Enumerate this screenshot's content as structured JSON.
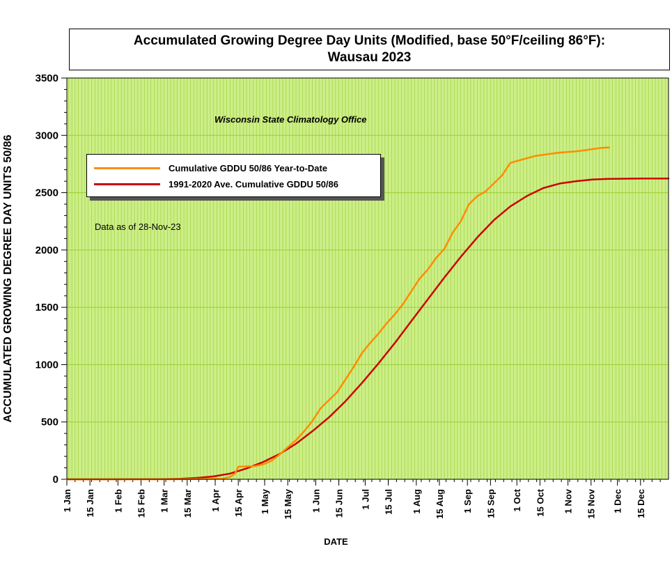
{
  "title_line1": "Accumulated Growing Degree Day Units (Modified, base 50°F/ceiling 86°F):",
  "title_line2": "Wausau 2023",
  "source_note": "Wisconsin State Climatology Office",
  "data_note": "Data as of 28-Nov-23",
  "colors": {
    "plot_bg": "#ccee88",
    "grid": "#9acd32",
    "ytd": "#ff8c00",
    "avg": "#cc0000"
  },
  "chart_data": {
    "type": "line",
    "title": "Accumulated Growing Degree Day Units (Modified, base 50°F/ceiling 86°F): Wausau 2023",
    "xlabel": "DATE",
    "ylabel": "ACCUMULATED GROWING DEGREE DAY UNITS 50/86",
    "ylim": [
      0,
      3500
    ],
    "xlim_day_of_year": [
      1,
      366
    ],
    "yticks": [
      "0",
      "500",
      "1000",
      "1500",
      "2000",
      "2500",
      "3000",
      "3500"
    ],
    "xticks": [
      {
        "label": "1 Jan",
        "day": 1
      },
      {
        "label": "15 Jan",
        "day": 15
      },
      {
        "label": "1 Feb",
        "day": 32
      },
      {
        "label": "15 Feb",
        "day": 46
      },
      {
        "label": "1 Mar",
        "day": 60
      },
      {
        "label": "15 Mar",
        "day": 74
      },
      {
        "label": "1 Apr",
        "day": 91
      },
      {
        "label": "15 Apr",
        "day": 105
      },
      {
        "label": "1 May",
        "day": 121
      },
      {
        "label": "15 May",
        "day": 135
      },
      {
        "label": "1 Jun",
        "day": 152
      },
      {
        "label": "15 Jun",
        "day": 166
      },
      {
        "label": "1 Jul",
        "day": 182
      },
      {
        "label": "15 Jul",
        "day": 196
      },
      {
        "label": "1 Aug",
        "day": 213
      },
      {
        "label": "15 Aug",
        "day": 227
      },
      {
        "label": "1 Sep",
        "day": 244
      },
      {
        "label": "15 Sep",
        "day": 258
      },
      {
        "label": "1 Oct",
        "day": 274
      },
      {
        "label": "15 Oct",
        "day": 288
      },
      {
        "label": "1 Nov",
        "day": 305
      },
      {
        "label": "15 Nov",
        "day": 319
      },
      {
        "label": "1 Dec",
        "day": 335
      },
      {
        "label": "15 Dec",
        "day": 349
      }
    ],
    "grid": true,
    "legend_placement": "upper-left",
    "series": [
      {
        "name": "Cumulative GDDU 50/86 Year-to-Date",
        "color": "#ff8c00",
        "x": [
          1,
          60,
          95,
          100,
          103,
          105,
          108,
          115,
          120,
          125,
          130,
          135,
          140,
          145,
          150,
          155,
          160,
          165,
          170,
          175,
          180,
          185,
          190,
          195,
          200,
          205,
          210,
          215,
          220,
          225,
          230,
          235,
          240,
          245,
          250,
          255,
          260,
          265,
          270,
          275,
          280,
          285,
          290,
          295,
          300,
          305,
          310,
          315,
          320,
          325,
          330
        ],
        "y": [
          0,
          0,
          5,
          20,
          50,
          110,
          112,
          115,
          130,
          160,
          215,
          280,
          340,
          420,
          510,
          620,
          690,
          760,
          870,
          980,
          1100,
          1190,
          1270,
          1360,
          1440,
          1530,
          1640,
          1750,
          1830,
          1930,
          2010,
          2150,
          2250,
          2400,
          2470,
          2510,
          2580,
          2650,
          2760,
          2780,
          2800,
          2820,
          2830,
          2840,
          2850,
          2855,
          2860,
          2870,
          2880,
          2890,
          2895
        ]
      },
      {
        "name": "1991-2020 Ave. Cumulative GDDU 50/86",
        "color": "#cc0000",
        "x": [
          1,
          60,
          70,
          80,
          90,
          100,
          110,
          120,
          130,
          140,
          150,
          160,
          170,
          180,
          190,
          200,
          210,
          220,
          230,
          240,
          250,
          260,
          270,
          280,
          290,
          300,
          310,
          320,
          330,
          340,
          350,
          366
        ],
        "y": [
          0,
          1,
          4,
          12,
          25,
          50,
          95,
          150,
          220,
          310,
          420,
          540,
          680,
          840,
          1010,
          1190,
          1380,
          1570,
          1760,
          1940,
          2110,
          2260,
          2380,
          2470,
          2540,
          2580,
          2600,
          2615,
          2620,
          2622,
          2623,
          2624
        ]
      }
    ]
  }
}
